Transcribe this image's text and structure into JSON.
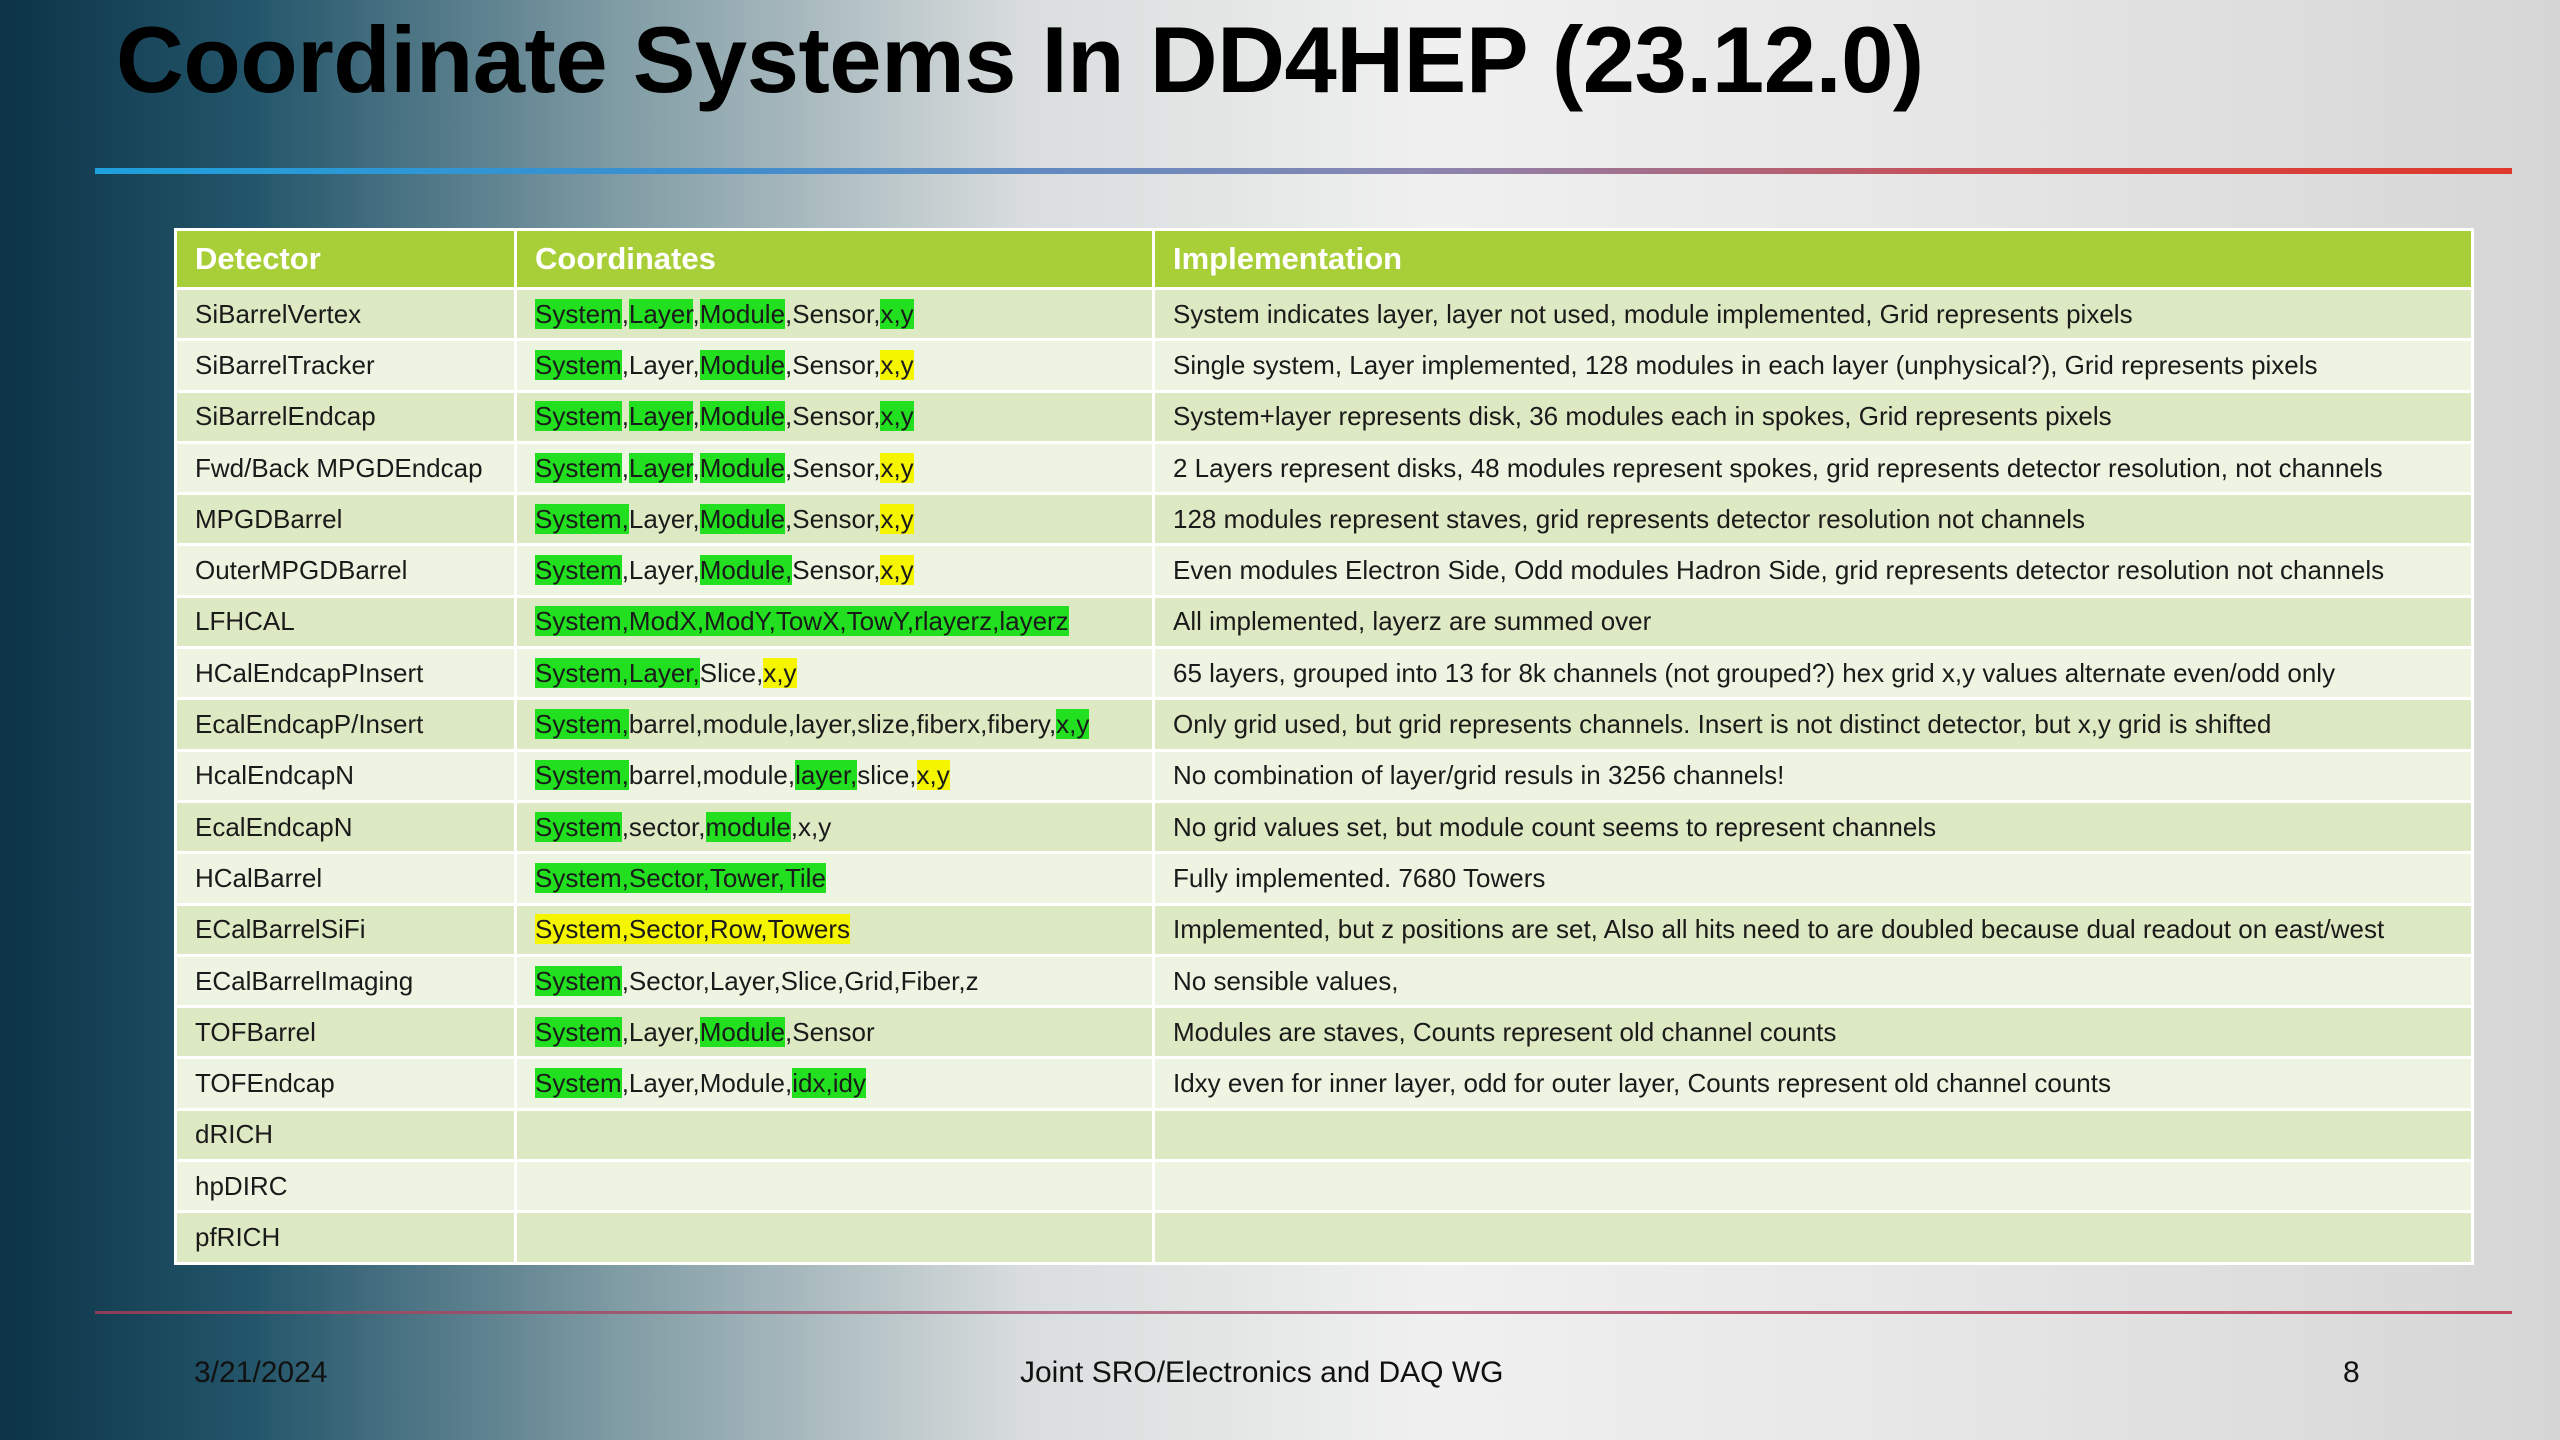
{
  "slide": {
    "title": "Coordinate Systems In DD4HEP (23.12.0)",
    "colors": {
      "header": "#a9cf38",
      "highlight_green": "#22e01f",
      "highlight_yellow": "#f5f500"
    }
  },
  "table": {
    "headers": [
      "Detector",
      "Coordinates",
      "Implementation"
    ],
    "rows": [
      {
        "detector": "SiBarrelVertex",
        "coords": [
          {
            "t": "System",
            "h": "g"
          },
          {
            "t": ","
          },
          {
            "t": "Layer",
            "h": "g"
          },
          {
            "t": ","
          },
          {
            "t": "Module",
            "h": "g"
          },
          {
            "t": ",Sensor,"
          },
          {
            "t": "x,y",
            "h": "g"
          }
        ],
        "impl": "System indicates layer, layer not used, module implemented, Grid represents pixels"
      },
      {
        "detector": "SiBarrelTracker",
        "coords": [
          {
            "t": "System",
            "h": "g"
          },
          {
            "t": ",Layer,"
          },
          {
            "t": "Module",
            "h": "g"
          },
          {
            "t": ",Sensor,"
          },
          {
            "t": "x,y",
            "h": "y"
          }
        ],
        "impl": "Single system, Layer implemented, 128 modules in each layer (unphysical?), Grid represents pixels"
      },
      {
        "detector": "SiBarrelEndcap",
        "coords": [
          {
            "t": "System",
            "h": "g"
          },
          {
            "t": ","
          },
          {
            "t": "Layer",
            "h": "g"
          },
          {
            "t": ","
          },
          {
            "t": "Module",
            "h": "g"
          },
          {
            "t": ",Sensor,"
          },
          {
            "t": "x,y",
            "h": "g"
          }
        ],
        "impl": "System+layer represents disk, 36 modules each in spokes, Grid represents pixels"
      },
      {
        "detector": "Fwd/Back MPGDEndcap",
        "coords": [
          {
            "t": "System",
            "h": "g"
          },
          {
            "t": ","
          },
          {
            "t": "Layer",
            "h": "g"
          },
          {
            "t": ","
          },
          {
            "t": "Module",
            "h": "g"
          },
          {
            "t": ",Sensor,"
          },
          {
            "t": "x,y",
            "h": "y"
          }
        ],
        "impl": "2 Layers represent disks, 48 modules represent spokes, grid represents detector resolution, not channels"
      },
      {
        "detector": "MPGDBarrel",
        "coords": [
          {
            "t": "System,",
            "h": "g"
          },
          {
            "t": "Layer,"
          },
          {
            "t": "Module",
            "h": "g"
          },
          {
            "t": ",Sensor,"
          },
          {
            "t": "x,y",
            "h": "y"
          }
        ],
        "impl": "128 modules represent staves, grid represents detector resolution not channels"
      },
      {
        "detector": "OuterMPGDBarrel",
        "coords": [
          {
            "t": "System",
            "h": "g"
          },
          {
            "t": ",Layer,"
          },
          {
            "t": "Module,",
            "h": "g"
          },
          {
            "t": "Sensor,"
          },
          {
            "t": "x,y",
            "h": "y"
          }
        ],
        "impl": "Even modules Electron Side, Odd modules Hadron Side, grid represents detector resolution not channels"
      },
      {
        "detector": "LFHCAL",
        "coords": [
          {
            "t": "System,ModX,ModY,TowX,TowY,rlayerz,layerz",
            "h": "g"
          }
        ],
        "impl": "All implemented, layerz are summed over"
      },
      {
        "detector": "HCalEndcapPInsert",
        "coords": [
          {
            "t": "System,Layer,",
            "h": "g"
          },
          {
            "t": "Slice,"
          },
          {
            "t": "x,y",
            "h": "y"
          }
        ],
        "impl": "65 layers, grouped into 13 for 8k channels (not grouped?)    hex grid x,y values alternate even/odd only"
      },
      {
        "detector": "EcalEndcapP/Insert",
        "coords": [
          {
            "t": "System,",
            "h": "g"
          },
          {
            "t": "barrel,module,layer,slize,fiberx,fibery,"
          },
          {
            "t": "x,y",
            "h": "g"
          }
        ],
        "impl": "Only grid used, but grid represents channels.  Insert is not distinct detector, but x,y grid is shifted"
      },
      {
        "detector": "HcalEndcapN",
        "coords": [
          {
            "t": "System,",
            "h": "g"
          },
          {
            "t": "barrel,module,"
          },
          {
            "t": "layer,",
            "h": "g"
          },
          {
            "t": "slice,"
          },
          {
            "t": "x,y",
            "h": "y"
          }
        ],
        "impl": "No combination of layer/grid resuls in 3256 channels!"
      },
      {
        "detector": "EcalEndcapN",
        "coords": [
          {
            "t": "System",
            "h": "g"
          },
          {
            "t": ",sector,"
          },
          {
            "t": "module",
            "h": "g"
          },
          {
            "t": ",x,y"
          }
        ],
        "impl": "No grid values set, but module count seems to represent channels"
      },
      {
        "detector": "HCalBarrel",
        "coords": [
          {
            "t": "System,Sector,Tower,Tile",
            "h": "g"
          }
        ],
        "impl": "Fully implemented.    7680 Towers"
      },
      {
        "detector": "ECalBarrelSiFi",
        "coords": [
          {
            "t": "System,Sector,Row,Towers",
            "h": "y"
          }
        ],
        "impl": "Implemented, but z positions are set,    Also all hits need to are doubled because dual readout on east/west"
      },
      {
        "detector": "ECalBarrelImaging",
        "coords": [
          {
            "t": "System",
            "h": "g"
          },
          {
            "t": ",Sector,Layer,Slice,Grid,Fiber,z"
          }
        ],
        "impl": "No sensible values,"
      },
      {
        "detector": "TOFBarrel",
        "coords": [
          {
            "t": "System",
            "h": "g"
          },
          {
            "t": ",Layer,"
          },
          {
            "t": "Module",
            "h": "g"
          },
          {
            "t": ",Sensor"
          }
        ],
        "impl": "Modules are staves, Counts represent old channel counts"
      },
      {
        "detector": "TOFEndcap",
        "coords": [
          {
            "t": "System",
            "h": "g"
          },
          {
            "t": ",Layer,Module,"
          },
          {
            "t": "idx,idy",
            "h": "g"
          }
        ],
        "impl": "Idxy even for inner layer, odd for outer layer, Counts represent old channel counts"
      },
      {
        "detector": "dRICH",
        "coords": [],
        "impl": ""
      },
      {
        "detector": "hpDIRC",
        "coords": [],
        "impl": ""
      },
      {
        "detector": "pfRICH",
        "coords": [],
        "impl": ""
      }
    ]
  },
  "footer": {
    "date": "3/21/2024",
    "center": "Joint SRO/Electronics and DAQ WG",
    "page": "8"
  }
}
